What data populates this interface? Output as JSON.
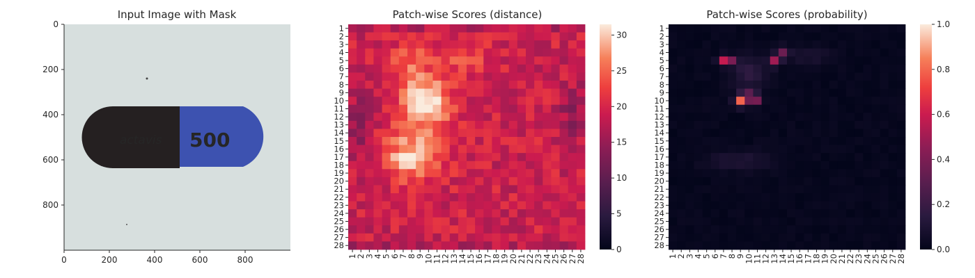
{
  "panels": {
    "image_title": "Input Image with Mask",
    "distance_title": "Patch-wise Scores (distance)",
    "probability_title": "Patch-wise Scores (probability)"
  },
  "capsule": {
    "logo_text": "actavis",
    "number_text": "500",
    "colors": {
      "cap": "#252021",
      "body": "#3d52b0",
      "print": "#b9bccc",
      "background": "#d7dfde"
    }
  },
  "colorbars": {
    "distance_ticks": [
      "0",
      "5",
      "10",
      "15",
      "20",
      "25",
      "30"
    ],
    "probability_ticks": [
      "0.0",
      "0.2",
      "0.4",
      "0.6",
      "0.8",
      "1.0"
    ]
  },
  "chart_data": [
    {
      "type": "image",
      "title": "Input Image with Mask",
      "xlim": [
        0,
        1000
      ],
      "ylim": [
        1000,
        0
      ],
      "x_ticks": [
        "0",
        "200",
        "400",
        "600",
        "800"
      ],
      "y_ticks": [
        "0",
        "200",
        "400",
        "600",
        "800"
      ]
    },
    {
      "type": "heatmap",
      "title": "Patch-wise Scores (distance)",
      "rows": 28,
      "cols": 28,
      "row_labels": [
        "1",
        "2",
        "3",
        "4",
        "5",
        "6",
        "7",
        "8",
        "9",
        "10",
        "11",
        "12",
        "13",
        "14",
        "15",
        "16",
        "17",
        "18",
        "19",
        "20",
        "21",
        "22",
        "23",
        "24",
        "25",
        "26",
        "27",
        "28"
      ],
      "col_labels": [
        "1",
        "2",
        "3",
        "4",
        "5",
        "6",
        "7",
        "8",
        "9",
        "10",
        "11",
        "12",
        "13",
        "14",
        "15",
        "16",
        "17",
        "18",
        "19",
        "20",
        "21",
        "22",
        "23",
        "24",
        "25",
        "26",
        "27",
        "28"
      ],
      "colorbar_range": [
        0,
        31.5
      ],
      "colormap": "rocket",
      "description_values": {
        "baseline": 19,
        "hot_regions": [
          {
            "row": 10,
            "col": 10,
            "value": 31
          },
          {
            "row": 17,
            "col": 9,
            "value": 27
          },
          {
            "row": 5,
            "col": 7,
            "value": 24
          }
        ]
      }
    },
    {
      "type": "heatmap",
      "title": "Patch-wise Scores (probability)",
      "rows": 28,
      "cols": 28,
      "row_labels": [
        "1",
        "2",
        "3",
        "4",
        "5",
        "6",
        "7",
        "8",
        "9",
        "10",
        "11",
        "12",
        "13",
        "14",
        "15",
        "16",
        "17",
        "18",
        "19",
        "20",
        "21",
        "22",
        "23",
        "24",
        "25",
        "26",
        "27",
        "28"
      ],
      "col_labels": [
        "1",
        "2",
        "3",
        "4",
        "5",
        "6",
        "7",
        "8",
        "9",
        "10",
        "11",
        "12",
        "13",
        "14",
        "15",
        "16",
        "17",
        "18",
        "19",
        "20",
        "21",
        "22",
        "23",
        "24",
        "25",
        "26",
        "27",
        "28"
      ],
      "colorbar_range": [
        0,
        1
      ],
      "colormap": "rocket",
      "description_values": {
        "baseline": 0.0,
        "hot_cells": [
          {
            "row": 10,
            "col": 9,
            "value": 0.72
          },
          {
            "row": 5,
            "col": 7,
            "value": 0.55
          },
          {
            "row": 5,
            "col": 13,
            "value": 0.45
          },
          {
            "row": 4,
            "col": 14,
            "value": 0.32
          },
          {
            "row": 9,
            "col": 10,
            "value": 0.38
          },
          {
            "row": 10,
            "col": 11,
            "value": 0.35
          }
        ]
      }
    }
  ]
}
